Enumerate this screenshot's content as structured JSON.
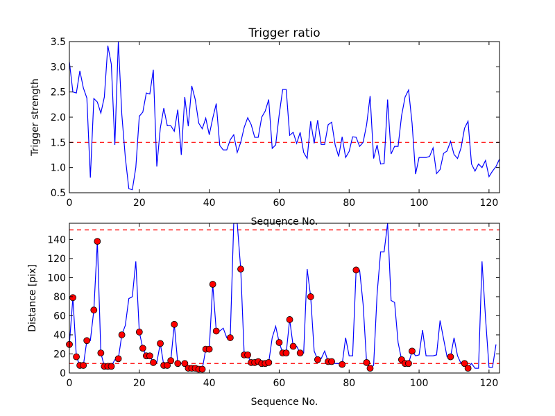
{
  "chart_data": [
    {
      "type": "line",
      "title": "Trigger ratio",
      "xlabel": "Sequence No.",
      "ylabel": "Trigger strength",
      "xlim": [
        0,
        123
      ],
      "ylim": [
        0.5,
        3.5
      ],
      "xticks": [
        "0",
        "20",
        "40",
        "60",
        "80",
        "100",
        "120"
      ],
      "yticks": [
        "0.5",
        "1.0",
        "1.5",
        "2.0",
        "2.5",
        "3.0",
        "3.5"
      ],
      "grid": false,
      "legend": "none",
      "colors": {
        "line": "#0000ff",
        "threshold": "#ff0000"
      },
      "threshold": 1.5,
      "series": [
        {
          "values": [
            3.1,
            2.5,
            2.48,
            2.92,
            2.58,
            2.38,
            0.8,
            2.37,
            2.3,
            2.08,
            2.4,
            3.42,
            3.05,
            1.45,
            3.5,
            2.05,
            1.2,
            0.58,
            0.56,
            1.0,
            2.02,
            2.1,
            2.48,
            2.46,
            2.94,
            1.02,
            1.78,
            2.18,
            1.83,
            1.83,
            1.72,
            2.15,
            1.25,
            2.4,
            1.82,
            2.62,
            2.35,
            1.88,
            1.77,
            1.98,
            1.65,
            1.98,
            2.27,
            1.44,
            1.35,
            1.35,
            1.55,
            1.65,
            1.3,
            1.5,
            1.8,
            1.99,
            1.85,
            1.6,
            1.6,
            2.0,
            2.12,
            2.35,
            1.38,
            1.45,
            2.05,
            2.55,
            2.55,
            1.64,
            1.7,
            1.48,
            1.7,
            1.3,
            1.18,
            1.92,
            1.48,
            1.94,
            1.46,
            1.46,
            1.85,
            1.9,
            1.45,
            1.22,
            1.61,
            1.2,
            1.32,
            1.61,
            1.6,
            1.42,
            1.5,
            1.85,
            2.42,
            1.18,
            1.45,
            1.07,
            1.08,
            2.35,
            1.27,
            1.42,
            1.42,
            2.03,
            2.4,
            2.54,
            1.88,
            0.87,
            1.2,
            1.2,
            1.2,
            1.22,
            1.39,
            0.88,
            0.96,
            1.28,
            1.33,
            1.52,
            1.26,
            1.18,
            1.39,
            1.78,
            1.92,
            1.07,
            0.93,
            1.07,
            1.0,
            1.14,
            0.82,
            0.93,
            1.02,
            1.17
          ]
        }
      ]
    },
    {
      "type": "line",
      "title": "",
      "xlabel": "Sequence No.",
      "ylabel": "Distance [pix]",
      "xlim": [
        0,
        123
      ],
      "ylim": [
        0,
        157
      ],
      "xticks": [
        "0",
        "20",
        "40",
        "60",
        "80",
        "100",
        "120"
      ],
      "yticks": [
        "0",
        "20",
        "40",
        "60",
        "80",
        "100",
        "120",
        "140"
      ],
      "grid": false,
      "legend": "none",
      "colors": {
        "line": "#0000ff",
        "marker": "#ff0000",
        "threshold": "#ff0000"
      },
      "thresholds": [
        10,
        150
      ],
      "series": [
        {
          "values": [
            30,
            79,
            17,
            8,
            8,
            34,
            34,
            66,
            138,
            21,
            7,
            7,
            7,
            14,
            15,
            40,
            50,
            78,
            80,
            117,
            43,
            26,
            18,
            18,
            11,
            11,
            31,
            8,
            8,
            13,
            51,
            10,
            10,
            10,
            5,
            5,
            5,
            5,
            4,
            25,
            25,
            93,
            44,
            44,
            47,
            37,
            37,
            157,
            157,
            109,
            19,
            19,
            10,
            10,
            11,
            10,
            10,
            11,
            37,
            49,
            32,
            21,
            21,
            56,
            28,
            28,
            21,
            21,
            109,
            80,
            23,
            14,
            15,
            23,
            12,
            12,
            10,
            10,
            9,
            37,
            18,
            18,
            108,
            108,
            72,
            11,
            5,
            8,
            83,
            127,
            127,
            157,
            76,
            74,
            32,
            14,
            10,
            10,
            23,
            18,
            19,
            45,
            18,
            18,
            18,
            19,
            55,
            36,
            17,
            17,
            37,
            18,
            10,
            10,
            6,
            10,
            5,
            5,
            117,
            58,
            6,
            6,
            30
          ]
        },
        {
          "name": "",
          "points": [
            [
              0,
              30
            ],
            [
              1,
              79
            ],
            [
              2,
              17
            ],
            [
              3,
              8
            ],
            [
              4,
              8
            ],
            [
              5,
              34
            ],
            [
              7,
              66
            ],
            [
              8,
              138
            ],
            [
              9,
              21
            ],
            [
              10,
              7
            ],
            [
              11,
              7
            ],
            [
              12,
              7
            ],
            [
              14,
              15
            ],
            [
              15,
              40
            ],
            [
              20,
              43
            ],
            [
              21,
              26
            ],
            [
              22,
              18
            ],
            [
              23,
              18
            ],
            [
              24,
              11
            ],
            [
              26,
              31
            ],
            [
              27,
              8
            ],
            [
              28,
              8
            ],
            [
              29,
              13
            ],
            [
              30,
              51
            ],
            [
              31,
              10
            ],
            [
              33,
              10
            ],
            [
              34,
              5
            ],
            [
              35,
              5
            ],
            [
              36,
              5
            ],
            [
              37,
              4
            ],
            [
              38,
              4
            ],
            [
              39,
              25
            ],
            [
              40,
              25
            ],
            [
              41,
              93
            ],
            [
              42,
              44
            ],
            [
              46,
              37
            ],
            [
              49,
              109
            ],
            [
              50,
              19
            ],
            [
              51,
              19
            ],
            [
              52,
              11
            ],
            [
              53,
              11
            ],
            [
              54,
              12
            ],
            [
              55,
              10
            ],
            [
              56,
              10
            ],
            [
              57,
              11
            ],
            [
              60,
              32
            ],
            [
              61,
              21
            ],
            [
              62,
              21
            ],
            [
              63,
              56
            ],
            [
              64,
              28
            ],
            [
              66,
              21
            ],
            [
              69,
              80
            ],
            [
              71,
              14
            ],
            [
              74,
              12
            ],
            [
              75,
              12
            ],
            [
              78,
              9
            ],
            [
              82,
              108
            ],
            [
              85,
              11
            ],
            [
              86,
              5
            ],
            [
              95,
              14
            ],
            [
              96,
              10
            ],
            [
              97,
              10
            ],
            [
              98,
              23
            ],
            [
              109,
              17
            ],
            [
              113,
              10
            ],
            [
              114,
              5
            ]
          ]
        }
      ]
    }
  ]
}
